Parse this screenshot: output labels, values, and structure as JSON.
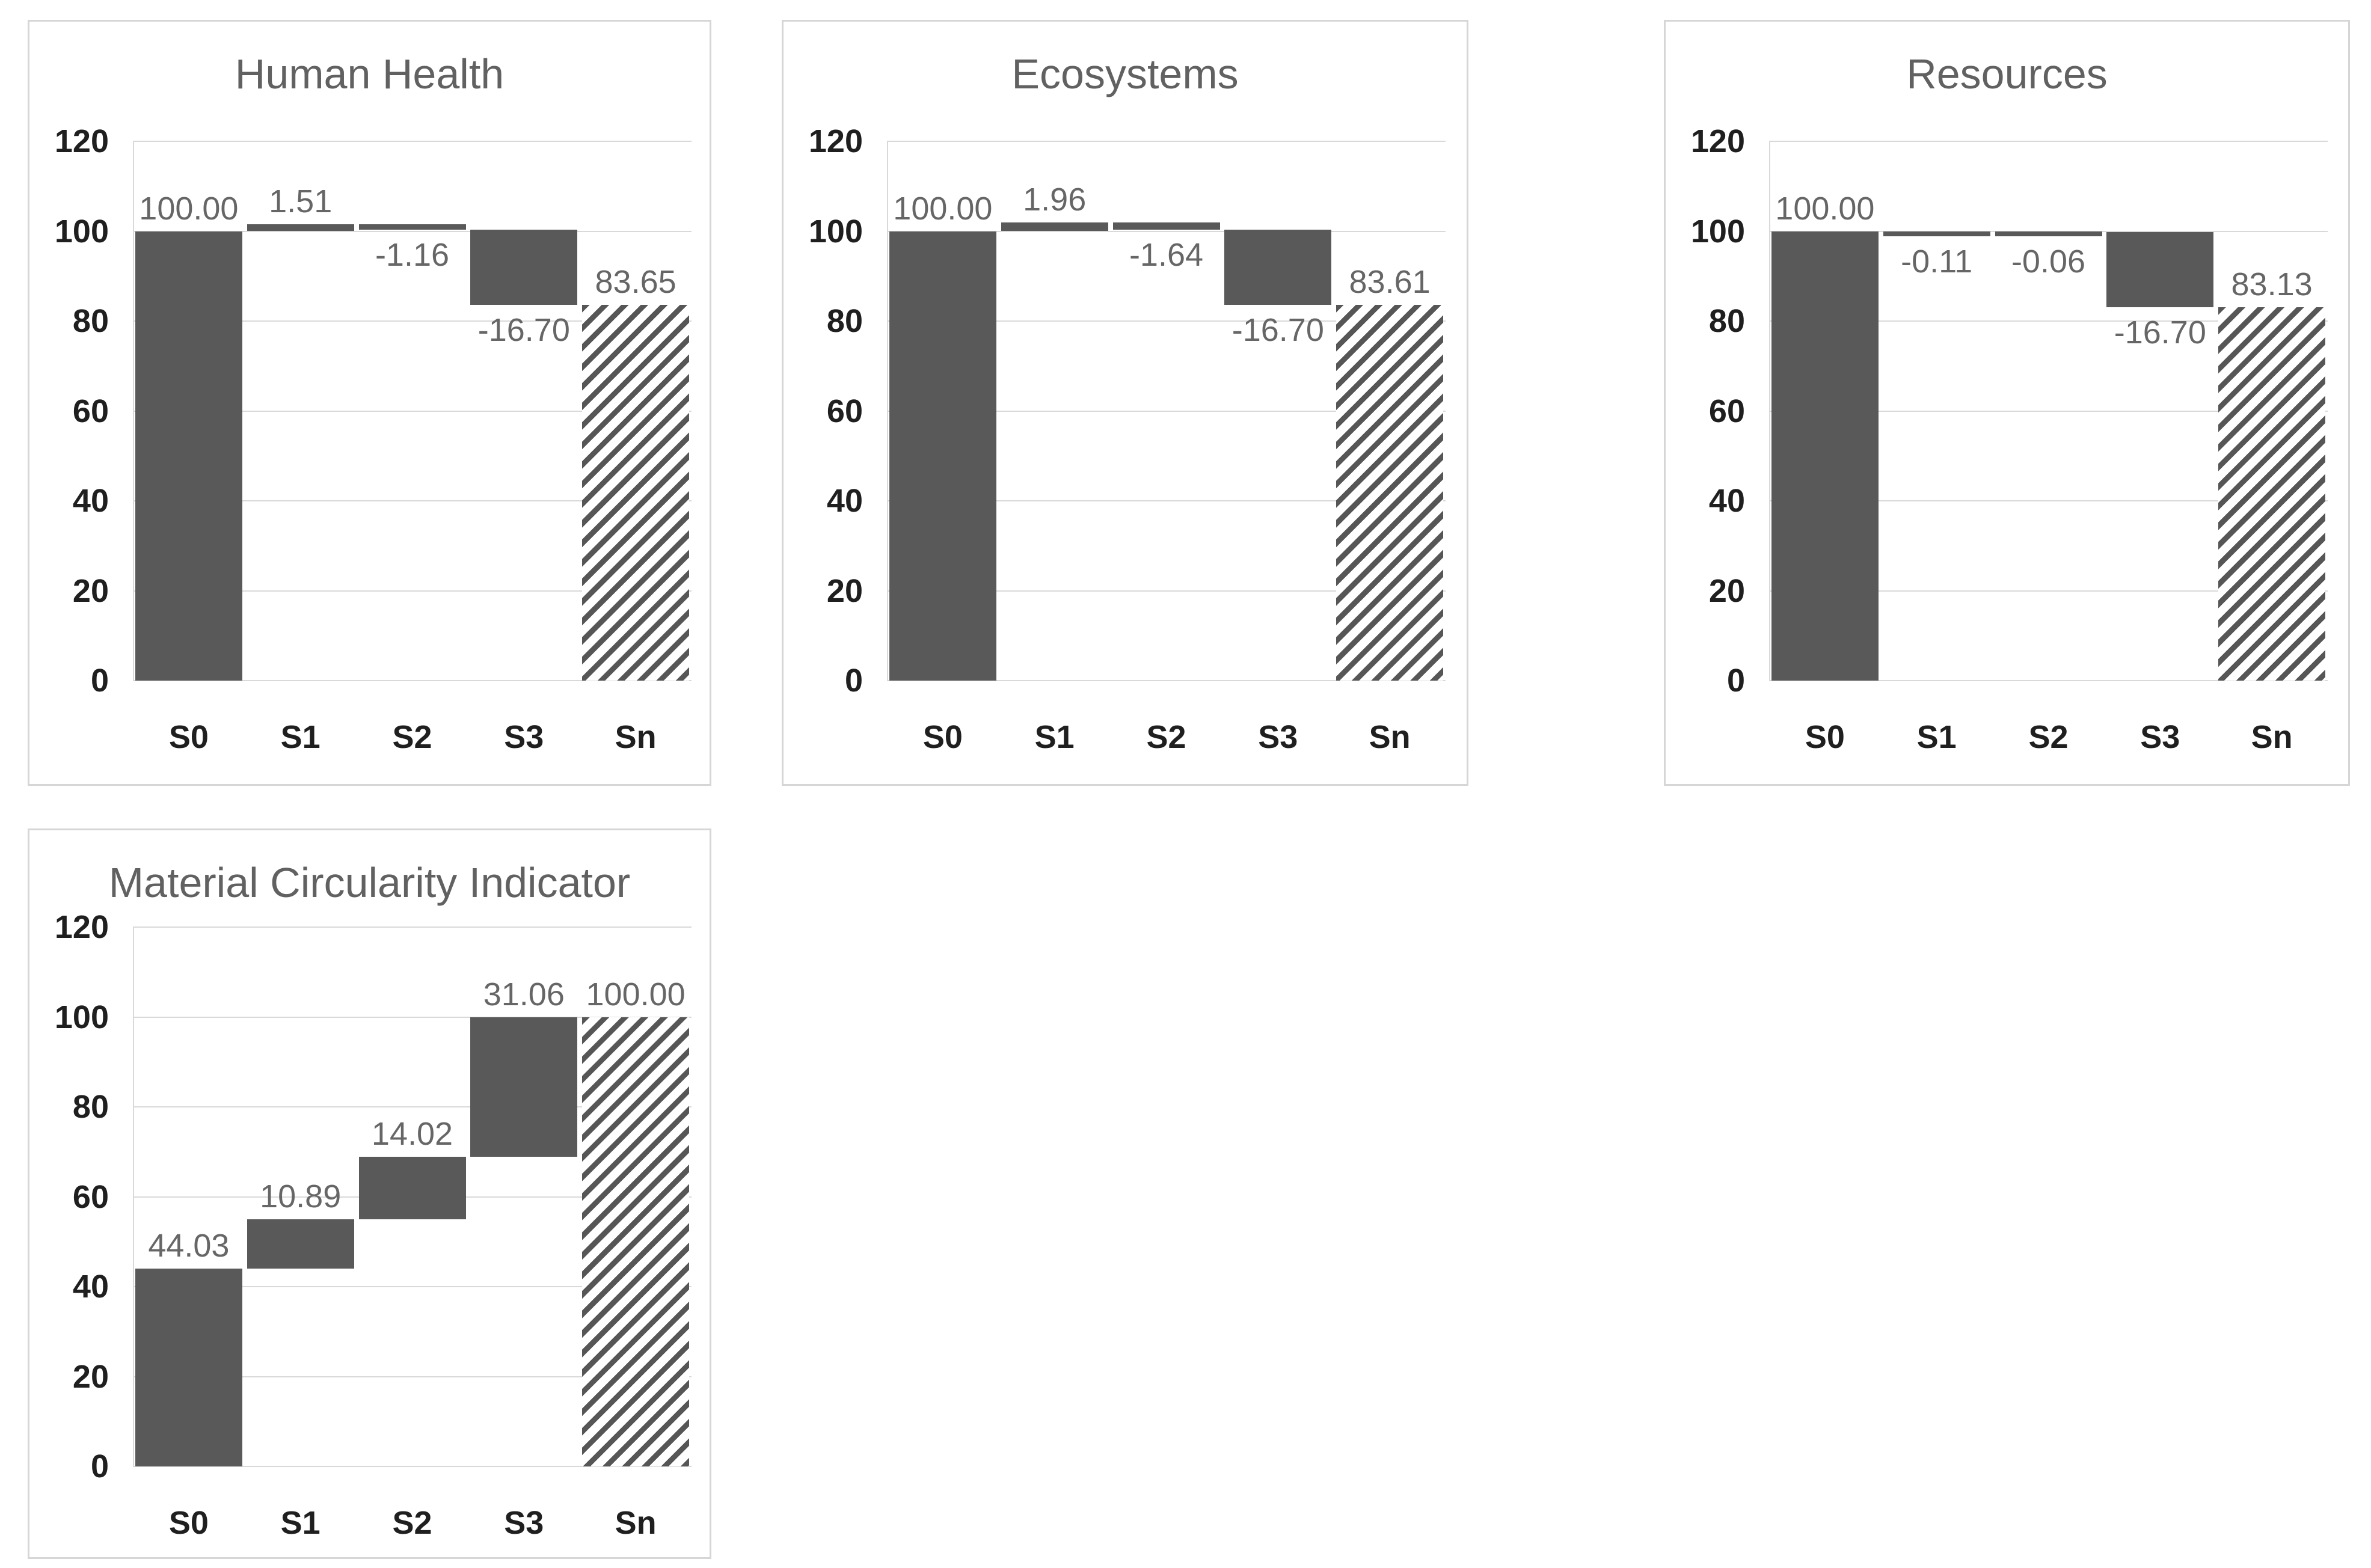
{
  "styles": {
    "bar_color": "#595959",
    "hatch_stripe_color": "#565656",
    "data_label_color": "#666666",
    "axis_label_color": "#1f1f1f",
    "title_color": "#616161",
    "gridline_color": "#d9d9d9",
    "card_border_color": "#d6d6d6",
    "background_color": "#ffffff"
  },
  "chart_data": [
    {
      "type": "bar",
      "subtype": "waterfall",
      "title": "Human Health",
      "categories": [
        "S0",
        "S1",
        "S2",
        "S3",
        "Sn"
      ],
      "xlabel": "",
      "ylabel": "",
      "ylim": [
        0,
        120
      ],
      "yticks": [
        0,
        20,
        40,
        60,
        80,
        100,
        120
      ],
      "grid": true,
      "legend_position": "none",
      "values": {
        "S0": 100.0,
        "S1": 1.51,
        "S2": -1.16,
        "S3": -16.7,
        "Sn": 83.65
      },
      "segments": [
        {
          "category": "S0",
          "from": 0,
          "to": 100.0,
          "style": "solid",
          "label": "100.00",
          "label_side": "above"
        },
        {
          "category": "S1",
          "from": 100.0,
          "to": 101.51,
          "style": "solid",
          "label": "1.51",
          "label_side": "above"
        },
        {
          "category": "S2",
          "from": 100.35,
          "to": 101.51,
          "style": "solid",
          "label": "-1.16",
          "label_side": "below"
        },
        {
          "category": "S3",
          "from": 83.65,
          "to": 100.35,
          "style": "solid",
          "label": "-16.70",
          "label_side": "below"
        },
        {
          "category": "Sn",
          "from": 0,
          "to": 83.65,
          "style": "hatch",
          "label": "83.65",
          "label_side": "above"
        }
      ]
    },
    {
      "type": "bar",
      "subtype": "waterfall",
      "title": "Ecosystems",
      "categories": [
        "S0",
        "S1",
        "S2",
        "S3",
        "Sn"
      ],
      "xlabel": "",
      "ylabel": "",
      "ylim": [
        0,
        120
      ],
      "yticks": [
        0,
        20,
        40,
        60,
        80,
        100,
        120
      ],
      "grid": true,
      "legend_position": "none",
      "values": {
        "S0": 100.0,
        "S1": 1.96,
        "S2": -1.64,
        "S3": -16.7,
        "Sn": 83.61
      },
      "segments": [
        {
          "category": "S0",
          "from": 0,
          "to": 100.0,
          "style": "solid",
          "label": "100.00",
          "label_side": "above"
        },
        {
          "category": "S1",
          "from": 100.0,
          "to": 101.96,
          "style": "solid",
          "label": "1.96",
          "label_side": "above"
        },
        {
          "category": "S2",
          "from": 100.32,
          "to": 101.96,
          "style": "solid",
          "label": "-1.64",
          "label_side": "below"
        },
        {
          "category": "S3",
          "from": 83.61,
          "to": 100.32,
          "style": "solid",
          "label": "-16.70",
          "label_side": "below"
        },
        {
          "category": "Sn",
          "from": 0,
          "to": 83.61,
          "style": "hatch",
          "label": "83.61",
          "label_side": "above"
        }
      ]
    },
    {
      "type": "bar",
      "subtype": "waterfall",
      "title": "Resources",
      "categories": [
        "S0",
        "S1",
        "S2",
        "S3",
        "Sn"
      ],
      "xlabel": "",
      "ylabel": "",
      "ylim": [
        0,
        120
      ],
      "yticks": [
        0,
        20,
        40,
        60,
        80,
        100,
        120
      ],
      "grid": true,
      "legend_position": "none",
      "values": {
        "S0": 100.0,
        "S1": -0.11,
        "S2": -0.06,
        "S3": -16.7,
        "Sn": 83.13
      },
      "segments": [
        {
          "category": "S0",
          "from": 0,
          "to": 100.0,
          "style": "solid",
          "label": "100.00",
          "label_side": "above"
        },
        {
          "category": "S1",
          "from": 99.89,
          "to": 100.0,
          "style": "solid",
          "label": "-0.11",
          "label_side": "below"
        },
        {
          "category": "S2",
          "from": 99.83,
          "to": 99.89,
          "style": "solid",
          "label": "-0.06",
          "label_side": "below"
        },
        {
          "category": "S3",
          "from": 83.13,
          "to": 99.83,
          "style": "solid",
          "label": "-16.70",
          "label_side": "below"
        },
        {
          "category": "Sn",
          "from": 0,
          "to": 83.13,
          "style": "hatch",
          "label": "83.13",
          "label_side": "above"
        }
      ]
    },
    {
      "type": "bar",
      "subtype": "waterfall",
      "title": "Material Circularity Indicator",
      "categories": [
        "S0",
        "S1",
        "S2",
        "S3",
        "Sn"
      ],
      "xlabel": "",
      "ylabel": "",
      "ylim": [
        0,
        120
      ],
      "yticks": [
        0,
        20,
        40,
        60,
        80,
        100,
        120
      ],
      "grid": true,
      "legend_position": "none",
      "values": {
        "S0": 44.03,
        "S1": 10.89,
        "S2": 14.02,
        "S3": 31.06,
        "Sn": 100.0
      },
      "segments": [
        {
          "category": "S0",
          "from": 0,
          "to": 44.03,
          "style": "solid",
          "label": "44.03",
          "label_side": "above"
        },
        {
          "category": "S1",
          "from": 44.03,
          "to": 54.92,
          "style": "solid",
          "label": "10.89",
          "label_side": "above"
        },
        {
          "category": "S2",
          "from": 54.92,
          "to": 68.94,
          "style": "solid",
          "label": "14.02",
          "label_side": "above"
        },
        {
          "category": "S3",
          "from": 68.94,
          "to": 100.0,
          "style": "solid",
          "label": "31.06",
          "label_side": "above"
        },
        {
          "category": "Sn",
          "from": 0,
          "to": 100.0,
          "style": "hatch",
          "label": "100.00",
          "label_side": "above"
        }
      ]
    }
  ]
}
